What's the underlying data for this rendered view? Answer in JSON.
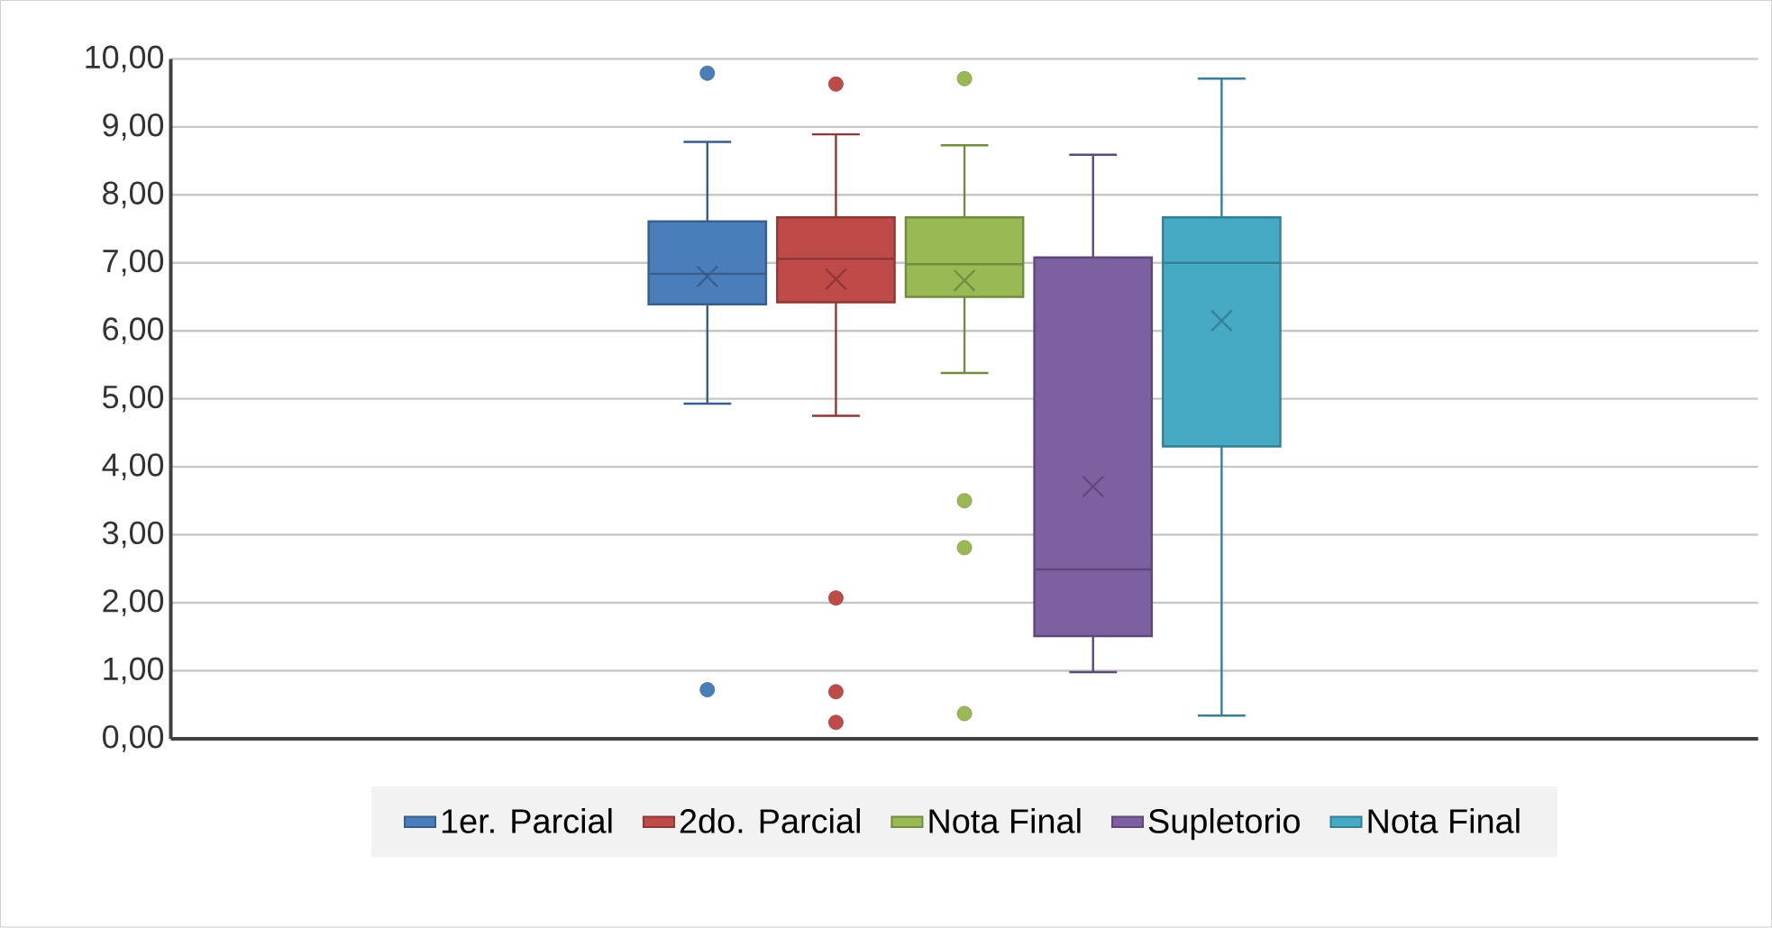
{
  "chart_data": {
    "type": "box",
    "categories": [
      null
    ],
    "ylim": [
      0,
      10
    ],
    "yticks": [
      {
        "value": 0,
        "label": "0,00"
      },
      {
        "value": 1,
        "label": "1,00"
      },
      {
        "value": 2,
        "label": "2,00"
      },
      {
        "value": 3,
        "label": "3,00"
      },
      {
        "value": 4,
        "label": "4,00"
      },
      {
        "value": 5,
        "label": "5,00"
      },
      {
        "value": 6,
        "label": "6,00"
      },
      {
        "value": 7,
        "label": "7,00"
      },
      {
        "value": 8,
        "label": "8,00"
      },
      {
        "value": 9,
        "label": "9,00"
      },
      {
        "value": 10,
        "label": "10,00"
      }
    ],
    "grid": "y",
    "legend": "bottom",
    "series": [
      {
        "name": "1er. Parcial",
        "color": "#4a7ebb",
        "boxes": [
          {
            "low": 4.93,
            "q1": 6.39,
            "median": 6.84,
            "q3": 7.61,
            "high": 8.78,
            "mean": 6.8,
            "outliers": [
              9.79,
              0.72
            ]
          }
        ]
      },
      {
        "name": "2do. Parcial",
        "color": "#be4b48",
        "boxes": [
          {
            "low": 4.75,
            "q1": 6.42,
            "median": 7.06,
            "q3": 7.67,
            "high": 8.89,
            "mean": 6.76,
            "outliers": [
              9.63,
              2.07,
              0.69,
              0.24
            ]
          }
        ]
      },
      {
        "name": "Nota Final",
        "color": "#98b954",
        "boxes": [
          {
            "low": 5.38,
            "q1": 6.5,
            "median": 6.98,
            "q3": 7.67,
            "high": 8.73,
            "mean": 6.74,
            "outliers": [
              9.71,
              3.5,
              2.81,
              0.37
            ]
          }
        ]
      },
      {
        "name": "Supletorio",
        "color": "#7d60a0",
        "boxes": [
          {
            "low": 0.98,
            "q1": 1.51,
            "median": 2.49,
            "q3": 7.08,
            "high": 8.59,
            "mean": 3.71
          }
        ]
      },
      {
        "name": "Nota Final",
        "color": "#46aac5",
        "boxes": [
          {
            "low": 0.34,
            "q1": 4.3,
            "median": 7.0,
            "q3": 7.67,
            "high": 9.71,
            "mean": 6.15
          }
        ]
      }
    ]
  }
}
